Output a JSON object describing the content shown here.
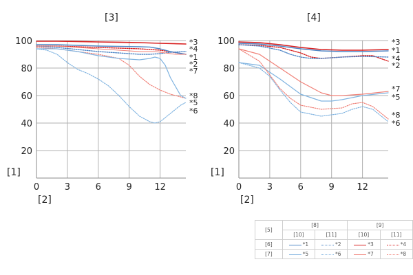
{
  "axis_marker_y": "[1]",
  "axis_marker_x": "[2]",
  "colors": {
    "red": "#d81e1e",
    "blue": "#4f86c6",
    "pink": "#f08077",
    "lightblue": "#7fb3e0",
    "grid": "#b0b0b0"
  },
  "legend": {
    "corner": "[5]",
    "group1": "[8]",
    "group2": "[9]",
    "sub1": "[10]",
    "sub2": "[11]",
    "sub3": "[10]",
    "sub4": "[11]",
    "row1": "[6]",
    "row2": "[7]",
    "r1c1": "*1",
    "r1c2": "*2",
    "r1c3": "*3",
    "r1c4": "*4",
    "r2c1": "*5",
    "r2c2": "*6",
    "r2c3": "*7",
    "r2c4": "*8"
  },
  "chart_data": [
    {
      "type": "line",
      "title": "[3]",
      "xlim": [
        0,
        14.5
      ],
      "ylim": [
        0,
        100
      ],
      "xticks": [
        0,
        3,
        6,
        9,
        12
      ],
      "yticks": [
        20,
        40,
        60,
        80,
        100
      ],
      "grid": true,
      "series": [
        {
          "name": "*3",
          "color": "red",
          "dash": "solid",
          "width": 1.6,
          "x": [
            0,
            2,
            4,
            6,
            8,
            10,
            12,
            14.5
          ],
          "y": [
            99.5,
            99.5,
            99.3,
            99,
            98.8,
            98.5,
            98,
            97.5
          ]
        },
        {
          "name": "*4",
          "color": "red",
          "dash": "dotted",
          "width": 1.4,
          "x": [
            0,
            2,
            4,
            6,
            8,
            10,
            12,
            14.5
          ],
          "y": [
            96,
            96,
            95.5,
            95,
            94.5,
            94,
            93,
            90
          ]
        },
        {
          "name": "*1",
          "color": "blue",
          "dash": "solid",
          "width": 1.4,
          "x": [
            0,
            2,
            4,
            6,
            8,
            10,
            11,
            12,
            13,
            14.5
          ],
          "y": [
            97,
            97,
            96.5,
            96,
            95.8,
            95.5,
            95.3,
            94,
            92,
            90
          ]
        },
        {
          "name": "*2",
          "color": "blue",
          "dash": "dotted",
          "width": 1.4,
          "x": [
            0,
            2,
            4,
            6,
            8,
            10,
            11,
            12,
            13,
            14.5
          ],
          "y": [
            96,
            95,
            93.5,
            92,
            91,
            90,
            90,
            90.5,
            91.5,
            92
          ]
        },
        {
          "name": "*7",
          "color": "pink",
          "dash": "dotted",
          "width": 1.2,
          "x": [
            0,
            2,
            4,
            6,
            8,
            9,
            10,
            11,
            12,
            13,
            14.5
          ],
          "y": [
            95,
            94,
            92,
            90,
            87,
            82,
            74,
            68,
            64,
            61,
            58
          ]
        },
        {
          "name": "*8",
          "color": "pink",
          "dash": "solid",
          "width": 1.1,
          "x": [
            0,
            2,
            4,
            6,
            8,
            10,
            11.5,
            12.5,
            13.5,
            14.5
          ],
          "y": [
            96,
            96,
            95,
            94,
            93,
            92,
            92,
            91,
            90,
            90
          ]
        },
        {
          "name": "*5",
          "color": "lightblue",
          "dash": "solid",
          "width": 1.2,
          "x": [
            0,
            2,
            4,
            6,
            8,
            10,
            11,
            11.5,
            12,
            12.5,
            13,
            14,
            14.5
          ],
          "y": [
            94,
            94,
            92,
            89,
            87,
            86,
            87,
            88,
            87,
            82,
            73,
            60,
            58
          ]
        },
        {
          "name": "*6",
          "color": "lightblue",
          "dash": "dotted",
          "width": 1.2,
          "x": [
            0,
            1,
            2,
            3,
            4,
            5,
            6,
            7,
            8,
            9,
            10,
            11,
            11.5,
            12,
            13,
            14,
            14.5
          ],
          "y": [
            94,
            93,
            90,
            84,
            79,
            76,
            72,
            67,
            60,
            52,
            45,
            41,
            40,
            41,
            47,
            53,
            55
          ]
        }
      ],
      "line_labels": [
        {
          "text": "*3",
          "y": 99
        },
        {
          "text": "*4",
          "y": 94
        },
        {
          "text": "*1",
          "y": 88
        },
        {
          "text": "*2",
          "y": 83
        },
        {
          "text": "*7",
          "y": 78
        },
        {
          "text": "*8",
          "y": 60
        },
        {
          "text": "*5",
          "y": 55
        },
        {
          "text": "*6",
          "y": 49
        }
      ]
    },
    {
      "type": "line",
      "title": "[4]",
      "xlim": [
        0,
        14.5
      ],
      "ylim": [
        0,
        100
      ],
      "xticks": [
        0,
        3,
        6,
        9,
        12
      ],
      "yticks": [
        20,
        40,
        60,
        80,
        100
      ],
      "grid": true,
      "series": [
        {
          "name": "*3",
          "color": "red",
          "dash": "solid",
          "width": 1.6,
          "x": [
            0,
            2,
            4,
            6,
            8,
            10,
            12,
            14.5
          ],
          "y": [
            99,
            98.5,
            97,
            95,
            93.5,
            93,
            93,
            93.5
          ]
        },
        {
          "name": "*1",
          "color": "blue",
          "dash": "solid",
          "width": 1.4,
          "x": [
            0,
            2,
            4,
            6,
            8,
            10,
            12,
            14.5
          ],
          "y": [
            98,
            97.5,
            96,
            94,
            92.5,
            92,
            92,
            92.5
          ]
        },
        {
          "name": "*4",
          "color": "red",
          "dash": "dotted",
          "width": 1.4,
          "x": [
            0,
            2,
            4,
            6,
            7,
            8,
            10,
            12,
            13,
            14.5
          ],
          "y": [
            97,
            96.5,
            95,
            91,
            88,
            87,
            88,
            89,
            89,
            85
          ]
        },
        {
          "name": "*2",
          "color": "blue",
          "dash": "dotted",
          "width": 1.4,
          "x": [
            0,
            2,
            4,
            5,
            6,
            7,
            8,
            10,
            12,
            14.5
          ],
          "y": [
            97,
            96,
            93,
            90,
            88,
            87,
            87,
            88,
            88.5,
            88
          ]
        },
        {
          "name": "*7",
          "color": "pink",
          "dash": "solid",
          "width": 1.2,
          "x": [
            0,
            2,
            4,
            6,
            8,
            9,
            10,
            12,
            14.5
          ],
          "y": [
            94,
            90,
            80,
            70,
            62,
            60,
            60,
            61,
            63
          ]
        },
        {
          "name": "*5",
          "color": "lightblue",
          "dash": "solid",
          "width": 1.2,
          "x": [
            0,
            2,
            4,
            6,
            8,
            9,
            10,
            12,
            14.5
          ],
          "y": [
            84,
            82,
            72,
            61,
            56,
            56,
            57,
            60,
            62
          ]
        },
        {
          "name": "*8",
          "color": "pink",
          "dash": "dotted",
          "width": 1.2,
          "x": [
            0,
            2,
            3,
            4,
            5,
            6,
            8,
            10,
            11,
            12,
            13,
            14.5
          ],
          "y": [
            94,
            85,
            75,
            65,
            58,
            53,
            50,
            51,
            54,
            55,
            52,
            43
          ]
        },
        {
          "name": "*6",
          "color": "lightblue",
          "dash": "dotted",
          "width": 1.2,
          "x": [
            0,
            2,
            3,
            4,
            5,
            6,
            8,
            10,
            11,
            12,
            13,
            14.5
          ],
          "y": [
            84,
            80,
            74,
            64,
            55,
            48,
            45,
            47,
            50,
            52,
            50,
            41
          ]
        }
      ],
      "line_labels": [
        {
          "text": "*3",
          "y": 99
        },
        {
          "text": "*1",
          "y": 93
        },
        {
          "text": "*4",
          "y": 87
        },
        {
          "text": "*2",
          "y": 82
        },
        {
          "text": "*7",
          "y": 65
        },
        {
          "text": "*5",
          "y": 59
        },
        {
          "text": "*8",
          "y": 46
        },
        {
          "text": "*6",
          "y": 40
        }
      ]
    }
  ]
}
